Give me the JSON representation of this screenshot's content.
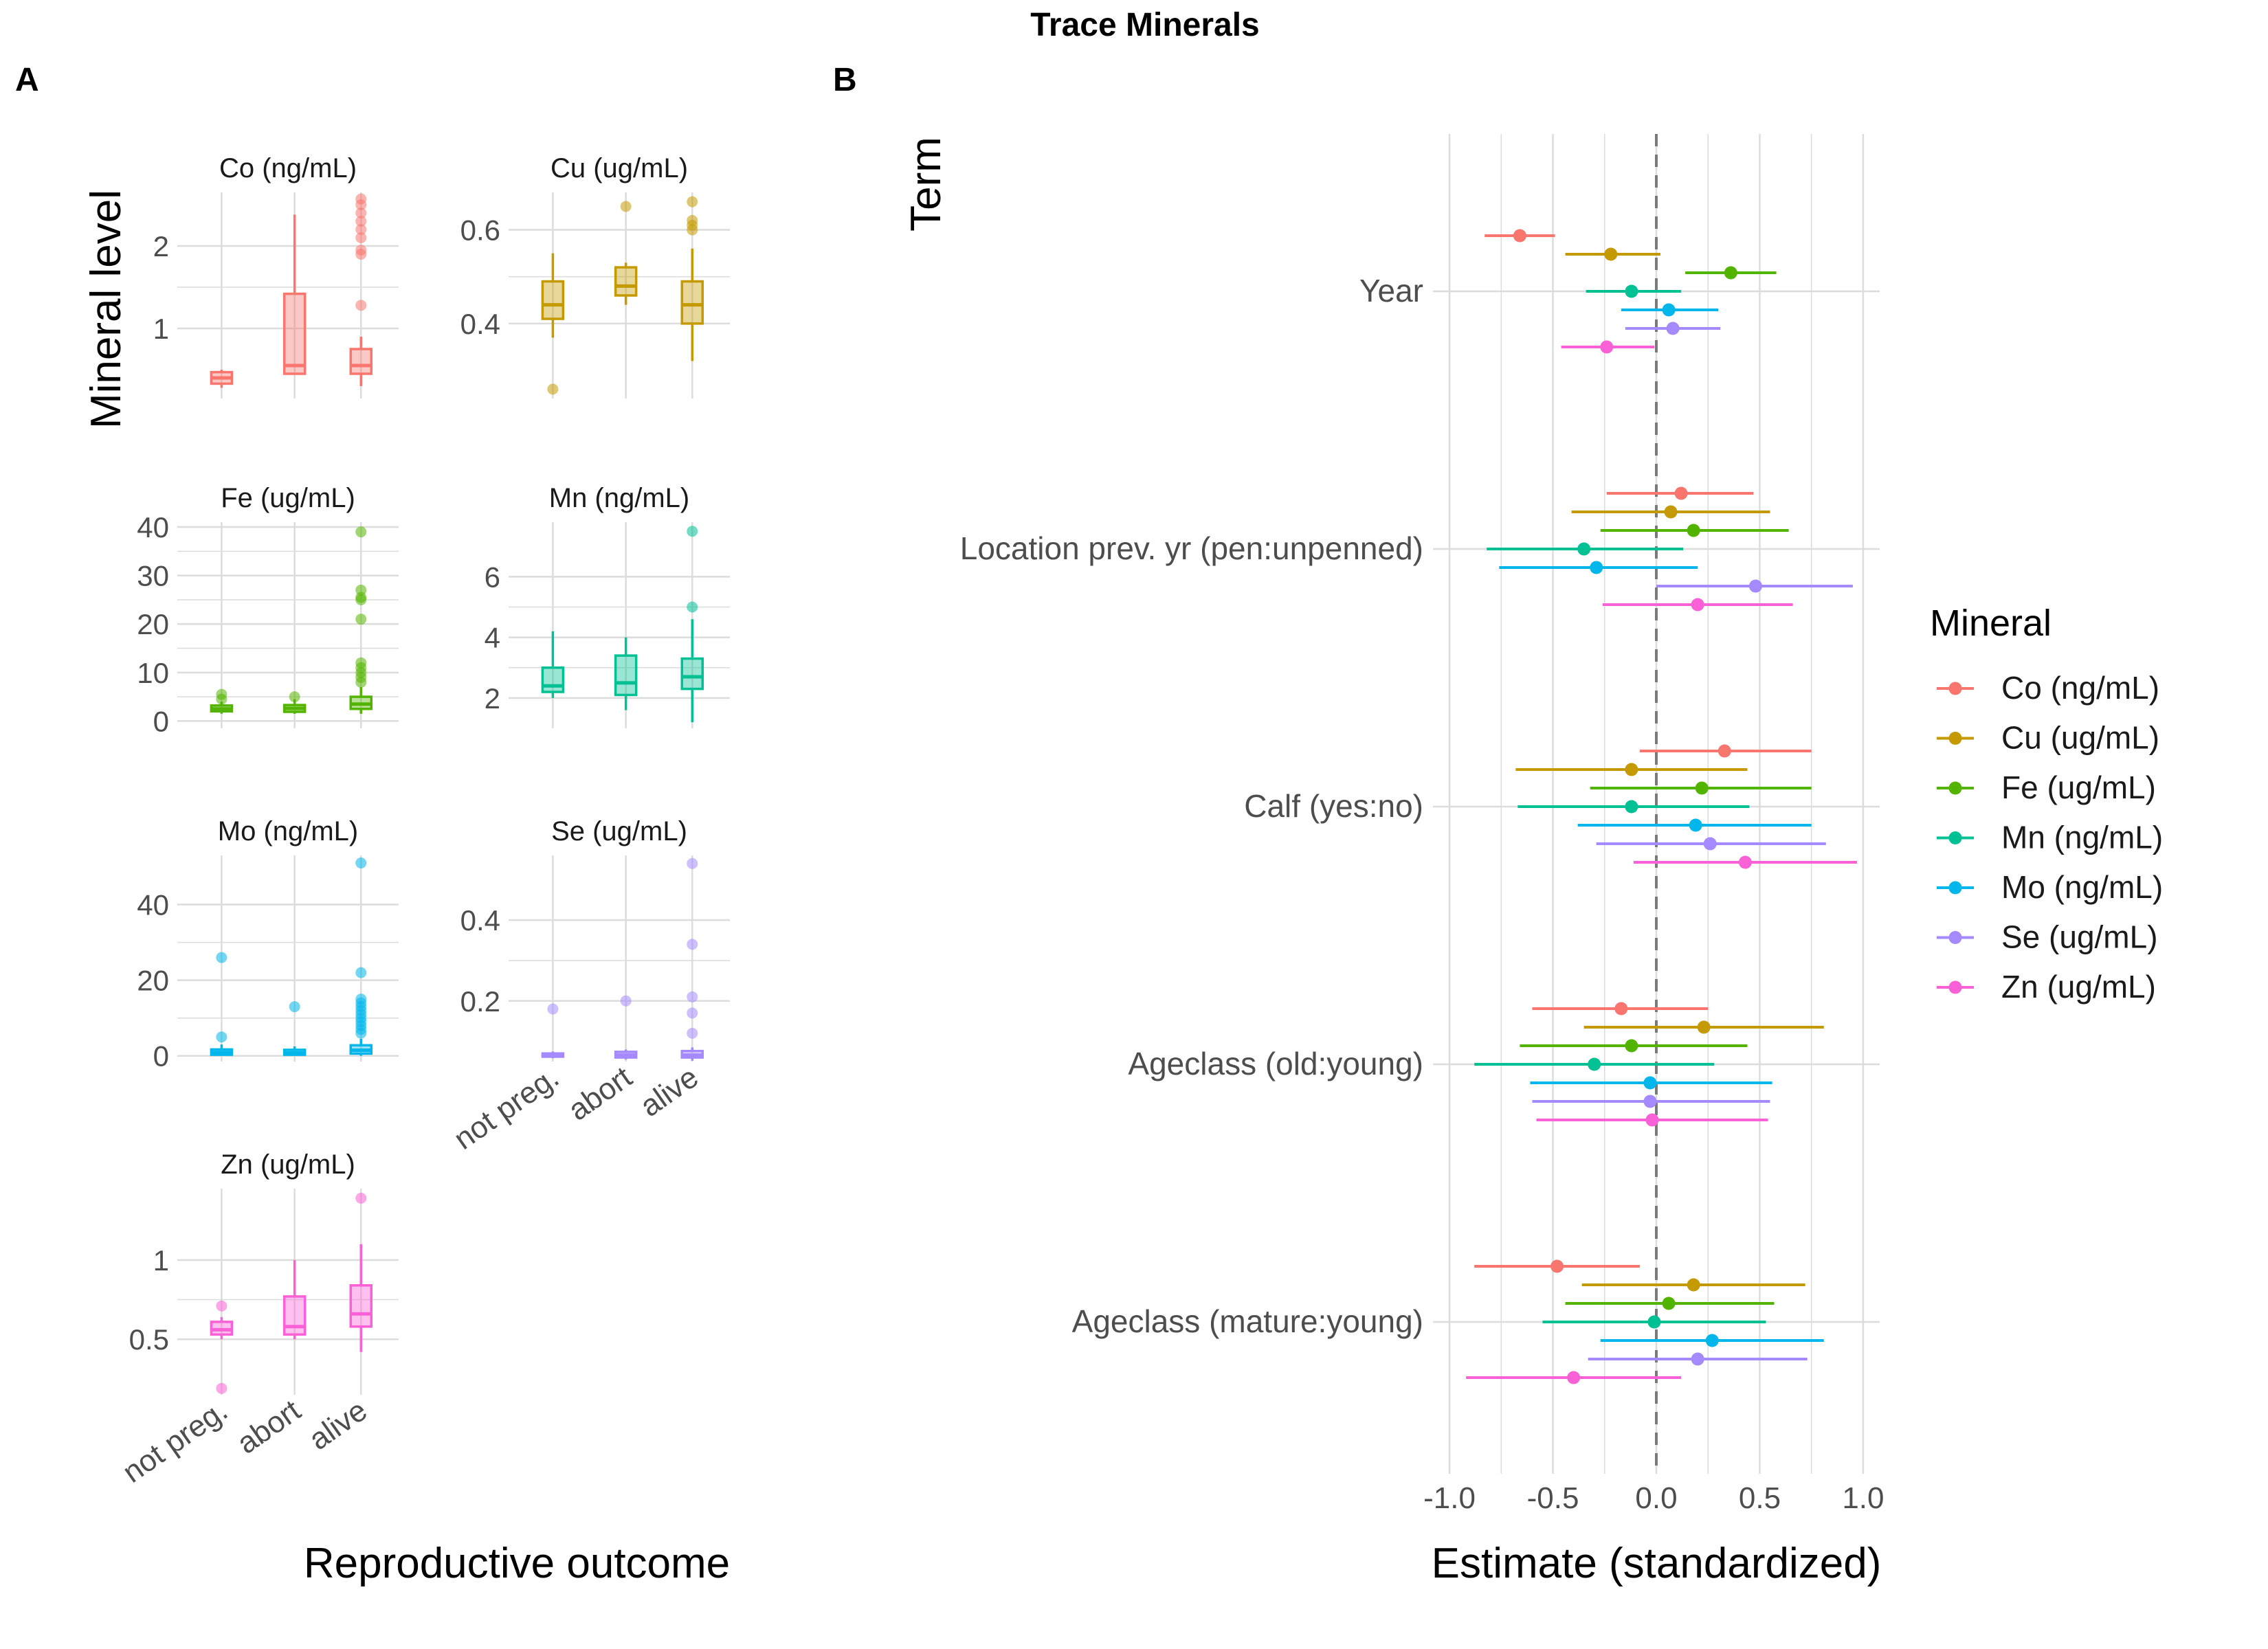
{
  "figure": {
    "title": "Trace Minerals",
    "panel_a_tag": "A",
    "panel_b_tag": "B"
  },
  "colors": {
    "Co (ng/mL)": "#F8766D",
    "Cu (ug/mL)": "#C49A00",
    "Fe (ug/mL)": "#53B400",
    "Mn (ng/mL)": "#00C094",
    "Mo (ng/mL)": "#00B6EB",
    "Se (ug/mL)": "#A58AFF",
    "Zn (ug/mL)": "#FB61D7",
    "grid": "#DCDCDC",
    "axis_text": "#4D4D4D"
  },
  "chart_data": [
    {
      "type": "box",
      "panel": "A",
      "ylabel": "Mineral level",
      "xlabel": "Reproductive outcome",
      "categories": [
        "not preg.",
        "abort",
        "alive"
      ],
      "facets": [
        {
          "name": "Co (ng/mL)",
          "ylim": [
            0.15,
            2.65
          ],
          "yticks": [
            1,
            2
          ],
          "boxes": [
            {
              "q1": 0.33,
              "med": 0.4,
              "q3": 0.47,
              "lo": 0.28,
              "hi": 0.5,
              "out": []
            },
            {
              "q1": 0.45,
              "med": 0.55,
              "q3": 1.42,
              "lo": 0.45,
              "hi": 2.38,
              "out": []
            },
            {
              "q1": 0.45,
              "med": 0.55,
              "q3": 0.75,
              "lo": 0.3,
              "hi": 0.9,
              "out": [
                1.28,
                1.9,
                1.95,
                2.1,
                2.2,
                2.3,
                2.4,
                2.5,
                2.57
              ]
            }
          ]
        },
        {
          "name": "Cu (ug/mL)",
          "ylim": [
            0.24,
            0.68
          ],
          "yticks": [
            0.4,
            0.6
          ],
          "boxes": [
            {
              "q1": 0.41,
              "med": 0.44,
              "q3": 0.49,
              "lo": 0.37,
              "hi": 0.55,
              "out": [
                0.26
              ]
            },
            {
              "q1": 0.46,
              "med": 0.48,
              "q3": 0.52,
              "lo": 0.44,
              "hi": 0.53,
              "out": [
                0.65
              ]
            },
            {
              "q1": 0.4,
              "med": 0.44,
              "q3": 0.49,
              "lo": 0.32,
              "hi": 0.56,
              "out": [
                0.6,
                0.61,
                0.62,
                0.66
              ]
            }
          ]
        },
        {
          "name": "Fe (ug/mL)",
          "ylim": [
            -1.5,
            41
          ],
          "yticks": [
            0,
            10,
            20,
            30,
            40
          ],
          "boxes": [
            {
              "q1": 2.0,
              "med": 2.5,
              "q3": 3.2,
              "lo": 1.5,
              "hi": 4.0,
              "out": [
                4.5,
                5.5
              ]
            },
            {
              "q1": 1.9,
              "med": 2.6,
              "q3": 3.3,
              "lo": 1.5,
              "hi": 4.5,
              "out": [
                5.0
              ]
            },
            {
              "q1": 2.5,
              "med": 3.5,
              "q3": 5.0,
              "lo": 1.5,
              "hi": 7.0,
              "out": [
                8,
                9,
                10,
                11,
                12,
                21,
                25,
                25.5,
                27,
                39
              ]
            }
          ]
        },
        {
          "name": "Mn (ng/mL)",
          "ylim": [
            1.0,
            7.8
          ],
          "yticks": [
            2,
            4,
            6
          ],
          "boxes": [
            {
              "q1": 2.2,
              "med": 2.4,
              "q3": 3.0,
              "lo": 2.0,
              "hi": 4.2,
              "out": []
            },
            {
              "q1": 2.1,
              "med": 2.5,
              "q3": 3.4,
              "lo": 1.6,
              "hi": 4.0,
              "out": []
            },
            {
              "q1": 2.3,
              "med": 2.7,
              "q3": 3.3,
              "lo": 1.2,
              "hi": 4.6,
              "out": [
                5.0,
                7.5
              ]
            }
          ]
        },
        {
          "name": "Mo (ng/mL)",
          "ylim": [
            -1.5,
            53
          ],
          "yticks": [
            0,
            20,
            40
          ],
          "boxes": [
            {
              "q1": 0.3,
              "med": 0.9,
              "q3": 1.7,
              "lo": 0.0,
              "hi": 3.0,
              "out": [
                5.0,
                26
              ]
            },
            {
              "q1": 0.3,
              "med": 0.8,
              "q3": 1.6,
              "lo": 0.0,
              "hi": 2.5,
              "out": [
                13
              ]
            },
            {
              "q1": 0.6,
              "med": 1.5,
              "q3": 2.8,
              "lo": 0.0,
              "hi": 4.5,
              "out": [
                6,
                7,
                8,
                9,
                10,
                11,
                12,
                13,
                14,
                15,
                22,
                51
              ]
            }
          ]
        },
        {
          "name": "Se (ug/mL)",
          "ylim": [
            0.05,
            0.56
          ],
          "yticks": [
            0.2,
            0.4
          ],
          "boxes": [
            {
              "q1": 0.062,
              "med": 0.066,
              "q3": 0.07,
              "lo": 0.058,
              "hi": 0.075,
              "out": [
                0.18
              ]
            },
            {
              "q1": 0.06,
              "med": 0.066,
              "q3": 0.074,
              "lo": 0.055,
              "hi": 0.08,
              "out": [
                0.2
              ]
            },
            {
              "q1": 0.06,
              "med": 0.066,
              "q3": 0.076,
              "lo": 0.052,
              "hi": 0.085,
              "out": [
                0.12,
                0.17,
                0.21,
                0.34,
                0.54
              ]
            }
          ]
        },
        {
          "name": "Zn (ug/mL)",
          "ylim": [
            0.15,
            1.45
          ],
          "yticks": [
            0.5,
            1.0
          ],
          "boxes": [
            {
              "q1": 0.53,
              "med": 0.56,
              "q3": 0.61,
              "lo": 0.5,
              "hi": 0.64,
              "out": [
                0.71,
                0.19
              ]
            },
            {
              "q1": 0.53,
              "med": 0.58,
              "q3": 0.77,
              "lo": 0.5,
              "hi": 1.0,
              "out": []
            },
            {
              "q1": 0.58,
              "med": 0.66,
              "q3": 0.84,
              "lo": 0.42,
              "hi": 1.1,
              "out": [
                1.39
              ]
            }
          ]
        }
      ]
    },
    {
      "type": "dot-whisker",
      "panel": "B",
      "xlabel": "Estimate (standardized)",
      "ylabel": "Term",
      "xlim": [
        -1.08,
        1.08
      ],
      "xticks": [
        -1.0,
        -0.5,
        0.0,
        0.5,
        1.0
      ],
      "xtick_labels": [
        "-1.0",
        "-0.5",
        "0.0",
        "0.5",
        "1.0"
      ],
      "reference_line": 0,
      "legend_title": "Mineral",
      "legend_position": "right",
      "series": [
        "Co (ng/mL)",
        "Cu (ug/mL)",
        "Fe (ug/mL)",
        "Mn (ng/mL)",
        "Mo (ng/mL)",
        "Se (ug/mL)",
        "Zn (ug/mL)"
      ],
      "terms": [
        {
          "name": "Year",
          "estimates": [
            {
              "est": -0.66,
              "lo": -0.83,
              "hi": -0.49
            },
            {
              "est": -0.22,
              "lo": -0.44,
              "hi": 0.02
            },
            {
              "est": 0.36,
              "lo": 0.14,
              "hi": 0.58
            },
            {
              "est": -0.12,
              "lo": -0.34,
              "hi": 0.12
            },
            {
              "est": 0.06,
              "lo": -0.17,
              "hi": 0.3
            },
            {
              "est": 0.08,
              "lo": -0.15,
              "hi": 0.31
            },
            {
              "est": -0.24,
              "lo": -0.46,
              "hi": -0.01
            }
          ]
        },
        {
          "name": "Location prev. yr (pen:unpenned)",
          "estimates": [
            {
              "est": 0.12,
              "lo": -0.24,
              "hi": 0.47
            },
            {
              "est": 0.07,
              "lo": -0.41,
              "hi": 0.55
            },
            {
              "est": 0.18,
              "lo": -0.27,
              "hi": 0.64
            },
            {
              "est": -0.35,
              "lo": -0.82,
              "hi": 0.13
            },
            {
              "est": -0.29,
              "lo": -0.76,
              "hi": 0.2
            },
            {
              "est": 0.48,
              "lo": 0.0,
              "hi": 0.95
            },
            {
              "est": 0.2,
              "lo": -0.26,
              "hi": 0.66
            }
          ]
        },
        {
          "name": "Calf (yes:no)",
          "estimates": [
            {
              "est": 0.33,
              "lo": -0.08,
              "hi": 0.75
            },
            {
              "est": -0.12,
              "lo": -0.68,
              "hi": 0.44
            },
            {
              "est": 0.22,
              "lo": -0.32,
              "hi": 0.75
            },
            {
              "est": -0.12,
              "lo": -0.67,
              "hi": 0.45
            },
            {
              "est": 0.19,
              "lo": -0.38,
              "hi": 0.75
            },
            {
              "est": 0.26,
              "lo": -0.29,
              "hi": 0.82
            },
            {
              "est": 0.43,
              "lo": -0.11,
              "hi": 0.97
            }
          ]
        },
        {
          "name": "Ageclass (old:young)",
          "estimates": [
            {
              "est": -0.17,
              "lo": -0.6,
              "hi": 0.25
            },
            {
              "est": 0.23,
              "lo": -0.35,
              "hi": 0.81
            },
            {
              "est": -0.12,
              "lo": -0.66,
              "hi": 0.44
            },
            {
              "est": -0.3,
              "lo": -0.88,
              "hi": 0.28
            },
            {
              "est": -0.03,
              "lo": -0.61,
              "hi": 0.56
            },
            {
              "est": -0.03,
              "lo": -0.6,
              "hi": 0.55
            },
            {
              "est": -0.02,
              "lo": -0.58,
              "hi": 0.54
            }
          ]
        },
        {
          "name": "Ageclass (mature:young)",
          "estimates": [
            {
              "est": -0.48,
              "lo": -0.88,
              "hi": -0.08
            },
            {
              "est": 0.18,
              "lo": -0.36,
              "hi": 0.72
            },
            {
              "est": 0.06,
              "lo": -0.44,
              "hi": 0.57
            },
            {
              "est": -0.01,
              "lo": -0.55,
              "hi": 0.53
            },
            {
              "est": 0.27,
              "lo": -0.27,
              "hi": 0.81
            },
            {
              "est": 0.2,
              "lo": -0.33,
              "hi": 0.73
            },
            {
              "est": -0.4,
              "lo": -0.92,
              "hi": 0.12
            }
          ]
        }
      ]
    }
  ]
}
